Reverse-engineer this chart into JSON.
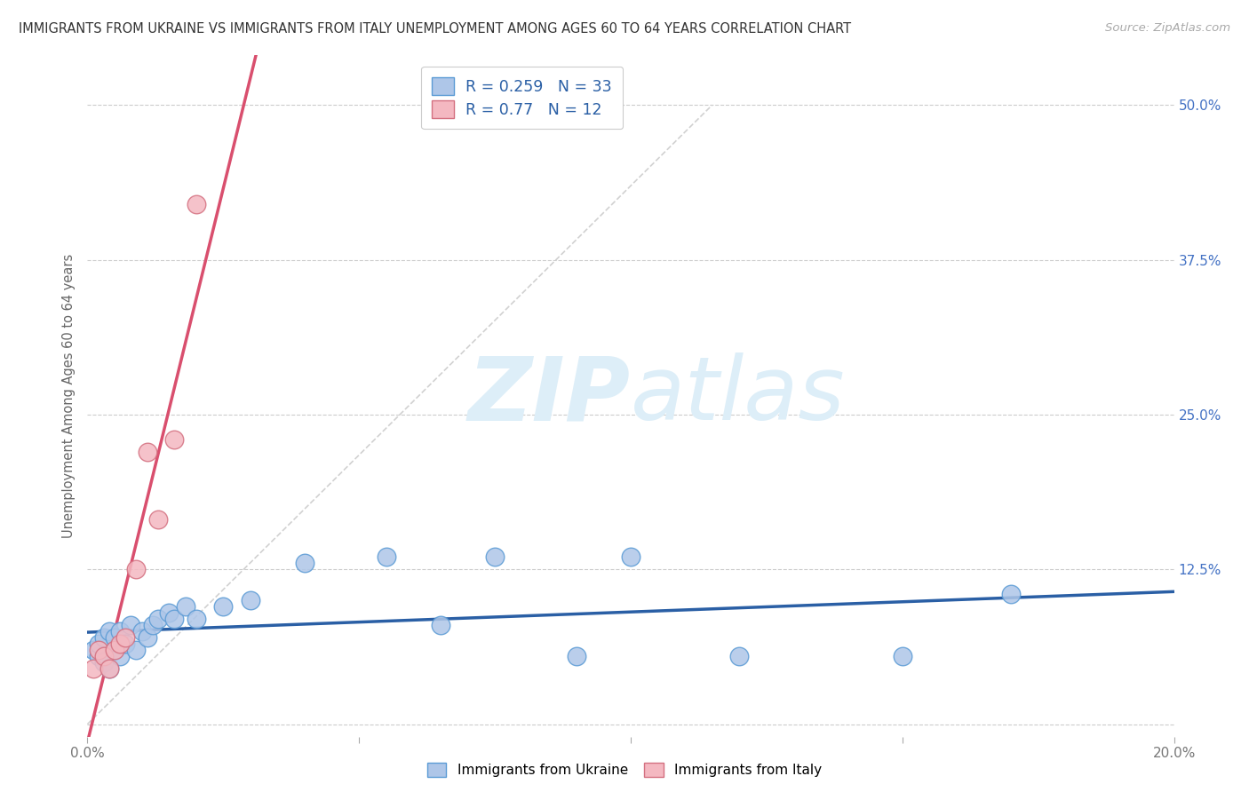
{
  "title": "IMMIGRANTS FROM UKRAINE VS IMMIGRANTS FROM ITALY UNEMPLOYMENT AMONG AGES 60 TO 64 YEARS CORRELATION CHART",
  "source": "Source: ZipAtlas.com",
  "ylabel": "Unemployment Among Ages 60 to 64 years",
  "xlim": [
    0.0,
    0.2
  ],
  "ylim": [
    -0.01,
    0.54
  ],
  "xticks": [
    0.0,
    0.05,
    0.1,
    0.15,
    0.2
  ],
  "xtick_labels": [
    "0.0%",
    "",
    "",
    "",
    "20.0%"
  ],
  "ytick_labels": [
    "",
    "12.5%",
    "25.0%",
    "37.5%",
    "50.0%"
  ],
  "yticks": [
    0.0,
    0.125,
    0.25,
    0.375,
    0.5
  ],
  "R_ukraine": 0.259,
  "N_ukraine": 33,
  "R_italy": 0.77,
  "N_italy": 12,
  "ukraine_color": "#aec6e8",
  "ukraine_edge": "#5b9bd5",
  "italy_color": "#f4b8c1",
  "italy_edge": "#d47080",
  "ukraine_line_color": "#2a5fa5",
  "italy_line_color": "#d94f6e",
  "diagonal_color": "#cccccc",
  "watermark_color": "#ddeef8",
  "legend_color": "#2a5fa5",
  "background_color": "#ffffff",
  "grid_color": "#cccccc",
  "ukraine_x": [
    0.001,
    0.002,
    0.002,
    0.003,
    0.003,
    0.004,
    0.004,
    0.005,
    0.005,
    0.006,
    0.006,
    0.007,
    0.008,
    0.009,
    0.01,
    0.011,
    0.012,
    0.013,
    0.015,
    0.016,
    0.018,
    0.02,
    0.025,
    0.03,
    0.04,
    0.055,
    0.065,
    0.075,
    0.09,
    0.1,
    0.12,
    0.15,
    0.17
  ],
  "ukraine_y": [
    0.06,
    0.055,
    0.065,
    0.05,
    0.07,
    0.045,
    0.075,
    0.06,
    0.07,
    0.055,
    0.075,
    0.065,
    0.08,
    0.06,
    0.075,
    0.07,
    0.08,
    0.085,
    0.09,
    0.085,
    0.095,
    0.085,
    0.095,
    0.1,
    0.13,
    0.135,
    0.08,
    0.135,
    0.055,
    0.135,
    0.055,
    0.055,
    0.105
  ],
  "italy_x": [
    0.001,
    0.002,
    0.003,
    0.004,
    0.005,
    0.006,
    0.007,
    0.009,
    0.011,
    0.013,
    0.016,
    0.02
  ],
  "italy_y": [
    0.045,
    0.06,
    0.055,
    0.045,
    0.06,
    0.065,
    0.07,
    0.125,
    0.22,
    0.165,
    0.23,
    0.42
  ]
}
